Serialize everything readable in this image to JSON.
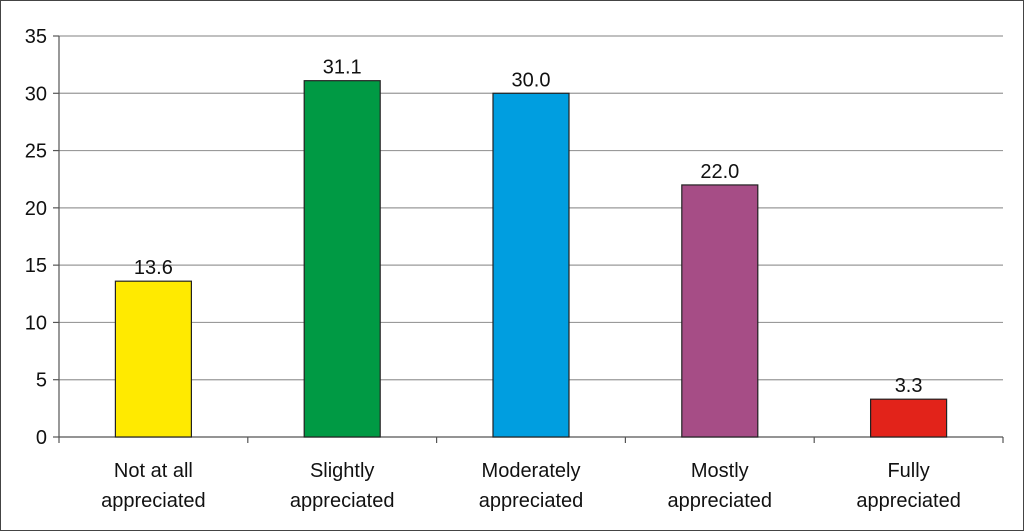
{
  "chart_data": {
    "type": "bar",
    "categories": [
      [
        "Not at all",
        "appreciated"
      ],
      [
        "Slightly",
        "appreciated"
      ],
      [
        "Moderately",
        "appreciated"
      ],
      [
        "Mostly",
        "appreciated"
      ],
      [
        "Fully",
        "appreciated"
      ]
    ],
    "values": [
      13.6,
      31.1,
      30.0,
      22.0,
      3.3
    ],
    "value_labels": [
      "13.6",
      "31.1",
      "30.0",
      "22.0",
      "3.3"
    ],
    "colors": [
      "#ffea00",
      "#009a44",
      "#009ee0",
      "#a64d86",
      "#e2231a"
    ],
    "ylim": [
      0,
      35
    ],
    "yticks": [
      0,
      5,
      10,
      15,
      20,
      25,
      30,
      35
    ],
    "grid": true,
    "title": "",
    "xlabel": "",
    "ylabel": ""
  }
}
